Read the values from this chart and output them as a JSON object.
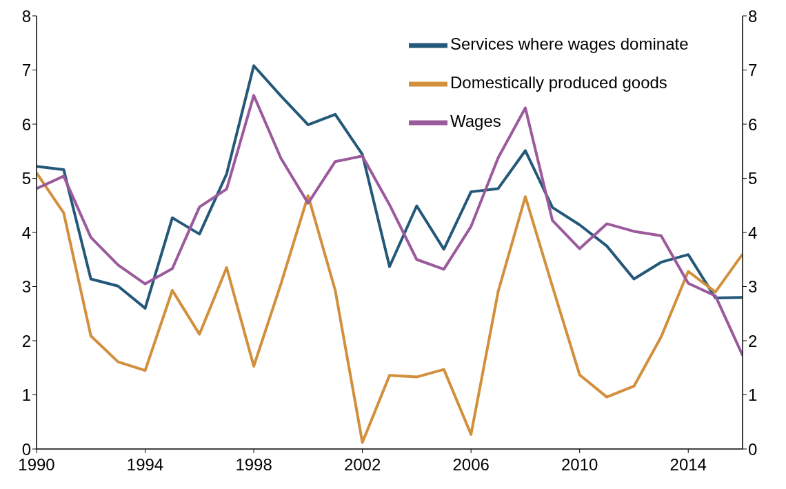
{
  "chart_data": {
    "type": "line",
    "x": [
      1990,
      1991,
      1992,
      1993,
      1994,
      1995,
      1996,
      1997,
      1998,
      1999,
      2000,
      2001,
      2002,
      2003,
      2004,
      2005,
      2006,
      2007,
      2008,
      2009,
      2010,
      2011,
      2012,
      2013,
      2014,
      2015,
      2016
    ],
    "series": [
      {
        "name": "Services where wages dominate",
        "color": "#235878",
        "values": [
          5.22,
          5.16,
          3.14,
          3.01,
          2.6,
          4.27,
          3.97,
          5.08,
          7.08,
          6.52,
          5.99,
          6.18,
          5.44,
          3.37,
          4.49,
          3.69,
          4.75,
          4.81,
          5.51,
          4.46,
          4.14,
          3.75,
          3.14,
          3.45,
          3.59,
          2.79,
          2.8
        ]
      },
      {
        "name": "Domestically produced goods",
        "color": "#d28f3c",
        "values": [
          5.1,
          4.36,
          2.09,
          1.61,
          1.45,
          2.93,
          2.12,
          3.35,
          1.53,
          3.05,
          4.68,
          2.93,
          0.12,
          1.36,
          1.33,
          1.47,
          0.27,
          2.91,
          4.66,
          3.0,
          1.37,
          0.96,
          1.16,
          2.07,
          3.28,
          2.9,
          3.6
        ]
      },
      {
        "name": "Wages",
        "color": "#9b5a9c",
        "values": [
          4.81,
          5.04,
          3.91,
          3.4,
          3.05,
          3.33,
          4.47,
          4.8,
          6.53,
          5.37,
          4.54,
          5.31,
          5.41,
          4.51,
          3.5,
          3.32,
          4.11,
          5.38,
          6.3,
          4.22,
          3.7,
          4.16,
          4.02,
          3.94,
          3.06,
          2.83,
          1.73
        ]
      }
    ],
    "xlim": [
      1990,
      2016
    ],
    "xticks": [
      1990,
      1994,
      1998,
      2002,
      2006,
      2010,
      2014
    ],
    "ylim": [
      0,
      8
    ],
    "yticks": [
      0,
      1,
      2,
      3,
      4,
      5,
      6,
      7,
      8
    ],
    "y2lim": [
      0,
      8
    ],
    "y2ticks": [
      0,
      1,
      2,
      3,
      4,
      5,
      6,
      7,
      8
    ],
    "legend": "top right",
    "grid": false,
    "marker": "none",
    "line_style": "solid"
  }
}
